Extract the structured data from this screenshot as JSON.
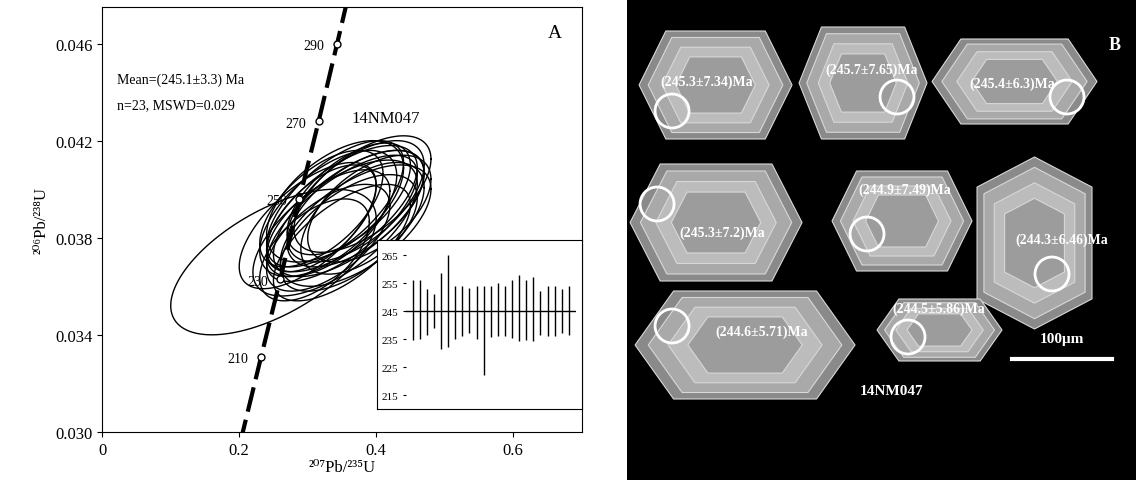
{
  "chart_data": [
    {
      "type": "concordia",
      "panel_label": "A",
      "x_label": "²⁰⁷Pb/²³⁵U",
      "y_label": "²⁰⁶Pb/²³⁸U",
      "annotations": {
        "sample": "14NM047",
        "mean": "Mean=(245.1±3.3) Ma",
        "stats": "n=23, MSWD=0.029"
      },
      "xlim": [
        0,
        0.7
      ],
      "ylim": [
        0.03,
        0.0475
      ],
      "xticks": [
        0,
        0.2,
        0.4,
        0.6
      ],
      "yticks": [
        {
          "value": 0.03,
          "label": "0.030"
        },
        {
          "value": 0.034,
          "label": "0.034"
        },
        {
          "value": 0.038,
          "label": "0.038"
        },
        {
          "value": 0.042,
          "label": "0.042"
        },
        {
          "value": 0.046,
          "label": "0.046"
        }
      ],
      "ellipses": {
        "x": [
          0.25,
          0.3,
          0.32,
          0.34,
          0.36,
          0.33,
          0.38,
          0.35,
          0.31,
          0.37,
          0.34,
          0.36,
          0.33,
          0.39,
          0.35,
          0.32,
          0.37,
          0.34,
          0.38,
          0.36,
          0.35,
          0.33,
          0.37
        ],
        "y": [
          0.037,
          0.0385,
          0.0392,
          0.0395,
          0.039,
          0.038,
          0.0398,
          0.0388,
          0.0375,
          0.0392,
          0.0384,
          0.0396,
          0.039,
          0.0392,
          0.0378,
          0.0388,
          0.0385,
          0.0394,
          0.0388,
          0.0382,
          0.0392,
          0.0386,
          0.0395
        ],
        "x_err": [
          0.15,
          0.1,
          0.09,
          0.1,
          0.11,
          0.09,
          0.1,
          0.11,
          0.08,
          0.1,
          0.12,
          0.09,
          0.1,
          0.09,
          0.1,
          0.08,
          0.11,
          0.1,
          0.09,
          0.1,
          0.11,
          0.09,
          0.1
        ],
        "y_err": [
          0.003,
          0.0026,
          0.0024,
          0.0025,
          0.0026,
          0.0022,
          0.0024,
          0.0026,
          0.0021,
          0.0024,
          0.0028,
          0.0023,
          0.0026,
          0.0022,
          0.0024,
          0.0022,
          0.0025,
          0.0026,
          0.0023,
          0.0024,
          0.0026,
          0.0022,
          0.0025
        ],
        "rho": [
          0.6,
          0.65,
          0.6,
          0.55,
          0.65,
          0.6,
          0.6,
          0.7,
          0.55,
          0.6,
          0.65,
          0.6,
          0.6,
          0.55,
          0.65,
          0.6,
          0.6,
          0.65,
          0.55,
          0.6,
          0.65,
          0.6,
          0.6
        ],
        "color": "#000000"
      },
      "concordia": {
        "x": [
          0.201,
          0.232,
          0.26,
          0.288,
          0.316,
          0.343,
          0.358
        ],
        "y": [
          0.0295,
          0.0331,
          0.0363,
          0.0396,
          0.0428,
          0.046,
          0.0478
        ],
        "labels": [
          null,
          210,
          230,
          250,
          270,
          290,
          null
        ],
        "line_style": "dashed",
        "marker": "circle",
        "color": "#000000"
      }
    },
    {
      "type": "errorbar",
      "x": [
        1,
        2,
        3,
        4,
        5,
        6,
        7,
        8,
        9,
        10,
        11,
        12,
        13,
        14,
        15,
        16,
        17,
        18,
        19,
        20,
        21,
        22,
        23
      ],
      "values": [
        245.3,
        245.5,
        244.8,
        245.0,
        245.0,
        248.5,
        244.5,
        245.0,
        245.2,
        244.6,
        238.0,
        244.8,
        245.5,
        245.0,
        245.7,
        246.2,
        245.3,
        245.6,
        244.2,
        245.0,
        245.1,
        245.0,
        245.2
      ],
      "errors": [
        10.7,
        10.5,
        8.2,
        6.0,
        13.5,
        16.5,
        9.5,
        9.0,
        8.2,
        9.4,
        16.0,
        9.2,
        9.5,
        9.0,
        10.3,
        11.8,
        10.7,
        11.4,
        7.8,
        9.0,
        8.9,
        8.0,
        8.8
      ],
      "mean": 245.1,
      "xlim": [
        0,
        24
      ],
      "ylim": [
        213,
        268
      ],
      "yticks": [
        215,
        225,
        235,
        245,
        255,
        265
      ],
      "tick_labels": "y",
      "color": "#000000"
    }
  ],
  "panel_b": {
    "panel_label": "B",
    "sample": "14NM047",
    "scale_bar": "100μm",
    "spot_ages": [
      "(245.3±7.34)Ma",
      "(245.7±7.65)Ma",
      "(245.4±6.3)Ma",
      "(245.3±7.2)Ma",
      "(244.9±7.49)Ma",
      "(244.3±6.46)Ma",
      "(244.6±5.71)Ma",
      "(244.5±5.86)Ma"
    ]
  }
}
